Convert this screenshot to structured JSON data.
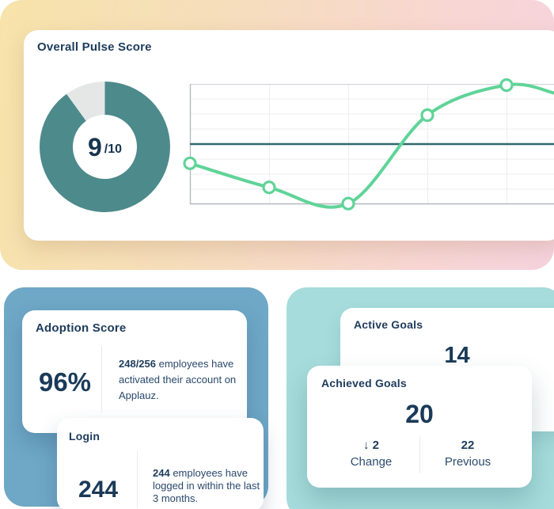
{
  "pulse_card": {
    "title": "Overall Pulse Score",
    "donut": {
      "value": "9",
      "denominator": "/10",
      "percent": 90,
      "fill_color": "#4d8a8c",
      "track_color": "#e5e7e6"
    },
    "chart_data": {
      "type": "line",
      "x": [
        1,
        2,
        3,
        4,
        5
      ],
      "values": [
        3.4,
        1.4,
        0.05,
        7.4,
        9.9
      ],
      "tail_value": 9.25,
      "reference_line": 5,
      "ylim": [
        0,
        10
      ],
      "grid": true,
      "title": "",
      "xlabel": "",
      "ylabel": "",
      "line_color": "#5fd498",
      "marker_fill": "#ffffff",
      "reference_color": "#2f686b",
      "grid_color": "#ededf0",
      "axis_color": "#b5b9c0"
    }
  },
  "adoption_card": {
    "title": "Adoption Score",
    "value": "96%",
    "description_bold": "248/256",
    "description_rest": " employees have activated their account on Applauz."
  },
  "login_card": {
    "title": "Login",
    "value": "244",
    "description_bold": "244",
    "description_rest": " employees have logged in within the last 3 months."
  },
  "active_goals_card": {
    "title": "Active Goals",
    "value": "14"
  },
  "achieved_goals_card": {
    "title": "Achieved Goals",
    "value": "20",
    "change_icon": "↓",
    "change_value": "2",
    "change_label": "Change",
    "previous_value": "22",
    "previous_label": "Previous"
  },
  "colors": {
    "navy_text": "#1d3b5c",
    "panel_blue": "#6fa7c6",
    "panel_teal": "#a6dcdb",
    "gradient_left": "#f7e3aa",
    "gradient_right": "#f5d3de"
  }
}
